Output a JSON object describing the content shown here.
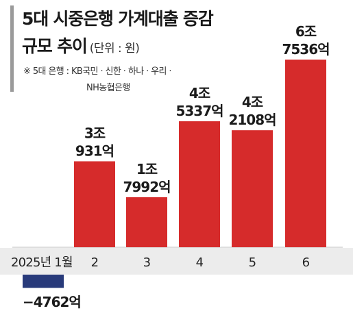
{
  "header": {
    "title_line1": "5대 시중은행 가계대출 증감",
    "title_line2": "규모 추이",
    "unit": "(단위 : 원)",
    "note_line1": "※ 5대 은행 : KB국민 · 신한 · 하나 · 우리 ·",
    "note_line2": "NH농협은행"
  },
  "colors": {
    "positive_bar": "#d62b2b",
    "negative_bar": "#283a7a",
    "accent": "#9a9a9a",
    "label_band": "#ececec"
  },
  "chart_data": {
    "type": "bar",
    "title": "5대 시중은행 가계대출 증감 규모 추이",
    "unit": "원",
    "categories": [
      "2025년 1월",
      "2",
      "3",
      "4",
      "5",
      "6"
    ],
    "values": [
      -476200000000,
      3093100000000,
      1799200000000,
      4533700000000,
      4210800000000,
      6753600000000
    ],
    "value_labels": [
      [
        "−4762억"
      ],
      [
        "3조",
        "931억"
      ],
      [
        "1조",
        "7992억"
      ],
      [
        "4조",
        "5337억"
      ],
      [
        "4조",
        "2108억"
      ],
      [
        "6조",
        "7536억"
      ]
    ],
    "ylim": [
      -476200000000,
      6753600000000
    ],
    "grid": false,
    "legend": "none"
  }
}
